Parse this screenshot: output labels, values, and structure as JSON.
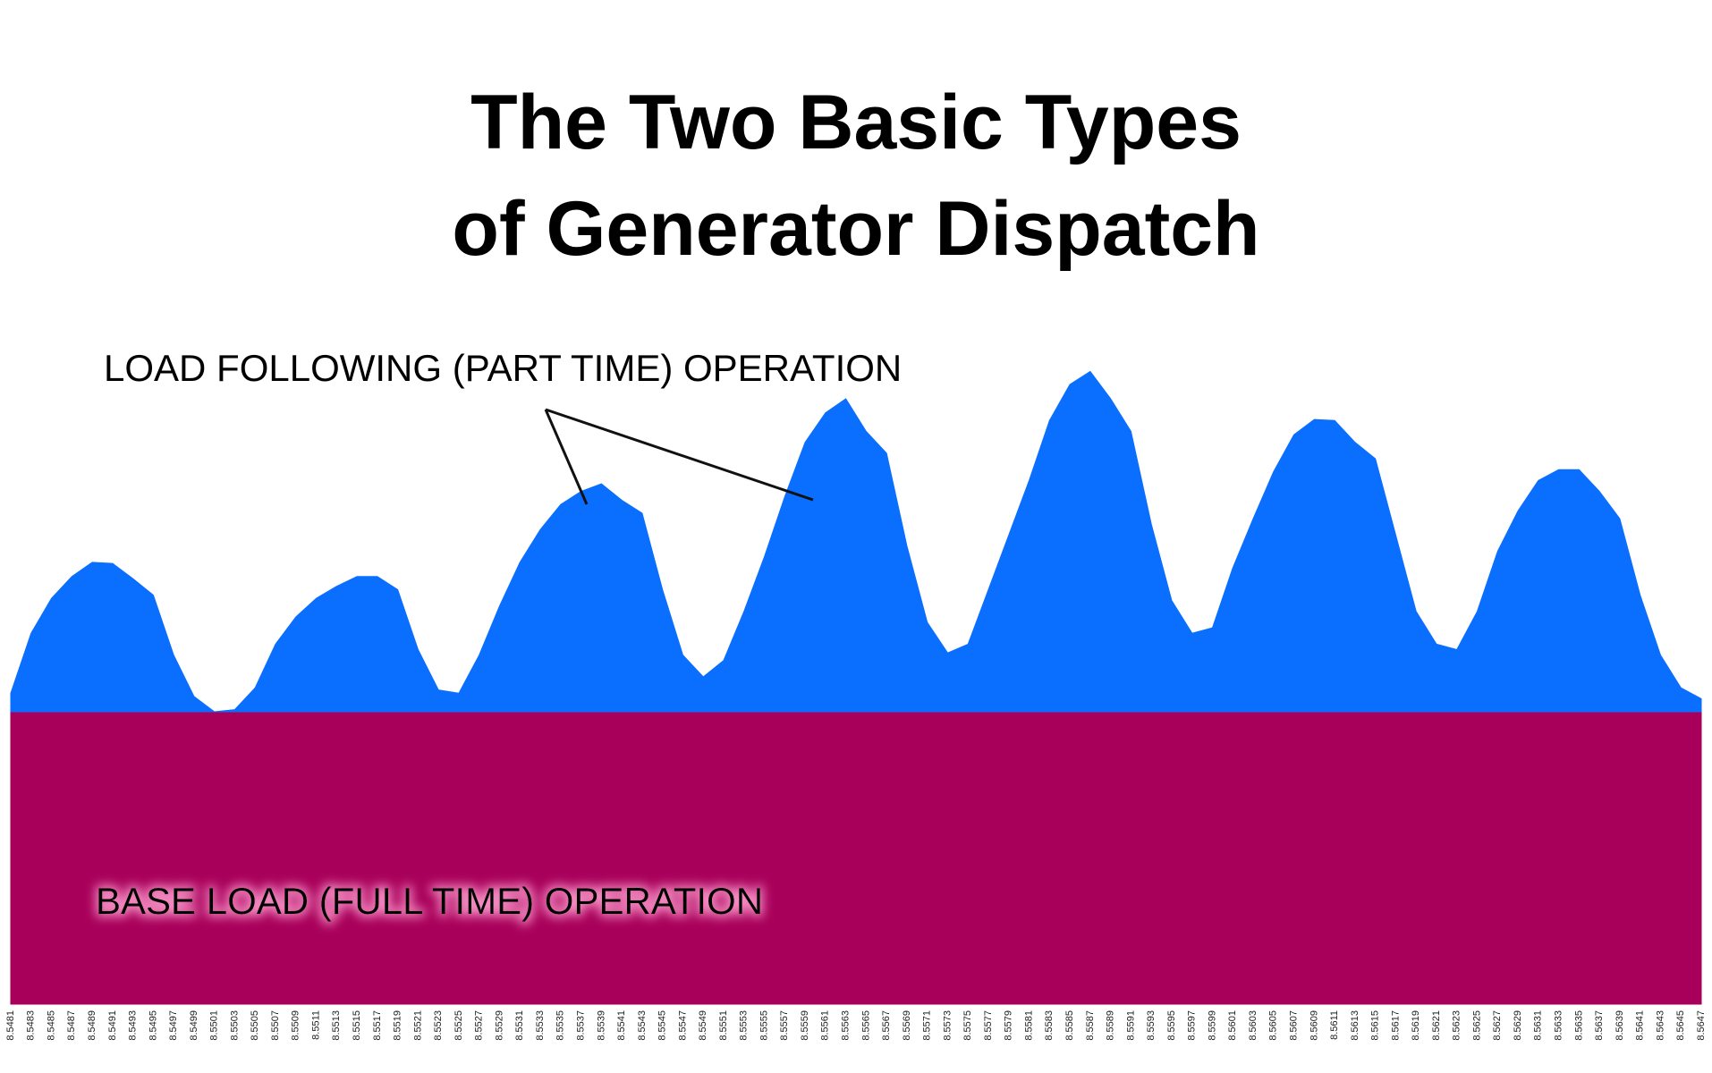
{
  "chart_data": {
    "type": "stacked_area",
    "title": [
      "The Two Basic Types",
      "of Generator Dispatch"
    ],
    "categories": [
      "8.5481",
      "8.5483",
      "8.5485",
      "8.5487",
      "8.5489",
      "8.5491",
      "8.5493",
      "8.5495",
      "8.5497",
      "8.5499",
      "8.5501",
      "8.5503",
      "8.5505",
      "8.5507",
      "8.5509",
      "8.5511",
      "8.5513",
      "8.5515",
      "8.5517",
      "8.5519",
      "8.5521",
      "8.5523",
      "8.5525",
      "8.5527",
      "8.5529",
      "8.5531",
      "8.5533",
      "8.5535",
      "8.5537",
      "8.5539",
      "8.5541",
      "8.5543",
      "8.5545",
      "8.5547",
      "8.5549",
      "8.5551",
      "8.5553",
      "8.5555",
      "8.5557",
      "8.5559",
      "8.5561",
      "8.5563",
      "8.5565",
      "8.5567",
      "8.5569",
      "8.5571",
      "8.5573",
      "8.5575",
      "8.5577",
      "8.5579",
      "8.5581",
      "8.5583",
      "8.5585",
      "8.5587",
      "8.5589",
      "8.5591",
      "8.5593",
      "8.5595",
      "8.5597",
      "8.5599",
      "8.5601",
      "8.5603",
      "8.5605",
      "8.5607",
      "8.5609",
      "8.5611",
      "8.5613",
      "8.5615",
      "8.5617",
      "8.5619",
      "8.5621",
      "8.5623",
      "8.5625",
      "8.5627",
      "8.5629",
      "8.5631",
      "8.5633",
      "8.5635",
      "8.5637",
      "8.5639",
      "8.5641",
      "8.5643",
      "8.5645",
      "8.5647"
    ],
    "series": [
      {
        "name": "BASE LOAD (FULL TIME) OPERATION",
        "color": "#a8005a",
        "values": [
          268,
          268,
          268,
          268,
          268,
          268,
          268,
          268,
          268,
          268,
          268,
          268,
          268,
          268,
          268,
          268,
          268,
          268,
          268,
          268,
          268,
          268,
          268,
          268,
          268,
          268,
          268,
          268,
          268,
          268,
          268,
          268,
          268,
          268,
          268,
          268,
          268,
          268,
          268,
          268,
          268,
          268,
          268,
          268,
          268,
          268,
          268,
          268,
          268,
          268,
          268,
          268,
          268,
          268,
          268,
          268,
          268,
          268,
          268,
          268,
          268,
          268,
          268,
          268,
          268,
          268,
          268,
          268,
          268,
          268,
          268,
          268,
          268,
          268,
          268,
          268,
          268,
          268,
          268,
          268,
          268,
          268,
          268,
          268
        ]
      },
      {
        "name": "LOAD FOLLOWING (PART TIME) OPERATION",
        "color": "#0a6eff",
        "values": [
          17,
          72,
          104,
          124,
          137,
          136,
          122,
          107,
          52,
          14,
          0,
          2,
          22,
          62,
          87,
          104,
          115,
          124,
          124,
          112,
          57,
          20,
          17,
          52,
          97,
          137,
          167,
          190,
          202,
          209,
          194,
          182,
          112,
          52,
          32,
          47,
          92,
          142,
          197,
          247,
          274,
          287,
          257,
          237,
          152,
          82,
          54,
          62,
          112,
          162,
          212,
          267,
          300,
          312,
          287,
          257,
          172,
          102,
          72,
          77,
          132,
          177,
          220,
          254,
          268,
          267,
          247,
          232,
          162,
          92,
          62,
          57,
          92,
          147,
          184,
          212,
          222,
          222,
          202,
          177,
          107,
          52,
          22,
          12
        ]
      }
    ],
    "ylim": [
      0,
      600
    ]
  }
}
